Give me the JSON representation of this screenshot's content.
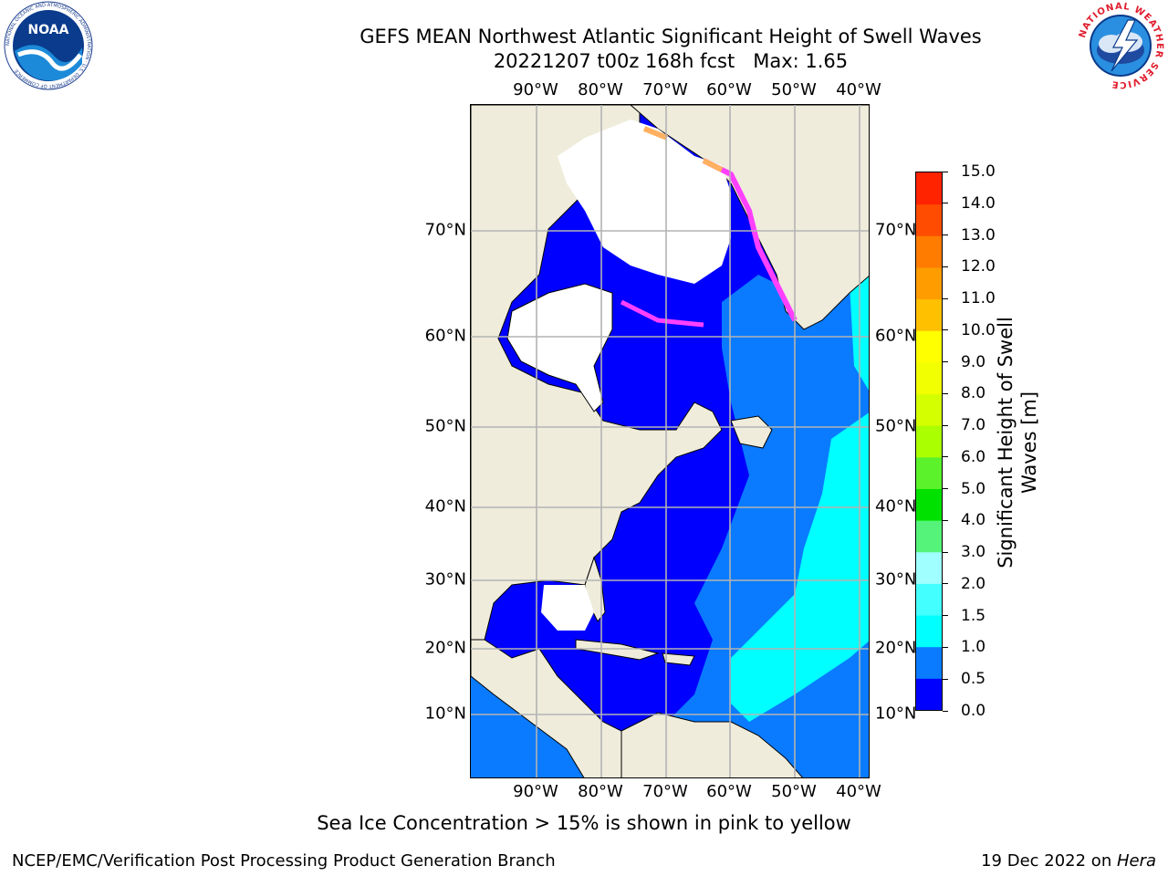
{
  "header": {
    "title_line1": "GEFS MEAN Northwest Atlantic Significant Height of Swell Waves",
    "title_line2": "20221207 t00z 168h fcst   Max: 1.65"
  },
  "logos": {
    "left": {
      "icon": "noaa-logo",
      "text": "NOAA",
      "ring_text": "NATIONAL OCEANIC AND ATMOSPHERIC ADMINISTRATION · U.S. DEPARTMENT OF COMMERCE"
    },
    "right": {
      "icon": "nws-logo",
      "ring_text": "NATIONAL WEATHER SERVICE"
    }
  },
  "map": {
    "longitude_labels": [
      "90°W",
      "80°W",
      "70°W",
      "60°W",
      "50°W",
      "40°W"
    ],
    "latitude_labels": [
      "70°N",
      "60°N",
      "50°N",
      "40°N",
      "30°N",
      "20°N",
      "10°N"
    ],
    "colors": {
      "land": "#efecdc",
      "ice_white": "#ffffff",
      "grid": "#b3b3b3",
      "coast": "#000000"
    }
  },
  "colorbar": {
    "label_line1": "Significant Height of Swell",
    "label_line2": "Waves [m]",
    "ticks": [
      "0.0",
      "0.5",
      "1.0",
      "1.5",
      "2.0",
      "3.0",
      "4.0",
      "5.0",
      "6.0",
      "7.0",
      "8.0",
      "9.0",
      "10.0",
      "11.0",
      "12.0",
      "13.0",
      "14.0",
      "15.0"
    ],
    "colors": [
      "#0000ff",
      "#0a7bff",
      "#00ffff",
      "#44ffff",
      "#a0ffff",
      "#55f37a",
      "#00e100",
      "#5bf22c",
      "#aaff00",
      "#d4ff00",
      "#f2ff00",
      "#ffff00",
      "#ffc000",
      "#ff9c00",
      "#ff7c00",
      "#ff4c00",
      "#ff2300"
    ]
  },
  "note": "Sea Ice Concentration > 15% is shown in pink to yellow",
  "footer": {
    "left": "NCEP/EMC/Verification Post Processing Product Generation Branch",
    "right_prefix": "19 Dec 2022 on ",
    "right_host": "Hera"
  }
}
